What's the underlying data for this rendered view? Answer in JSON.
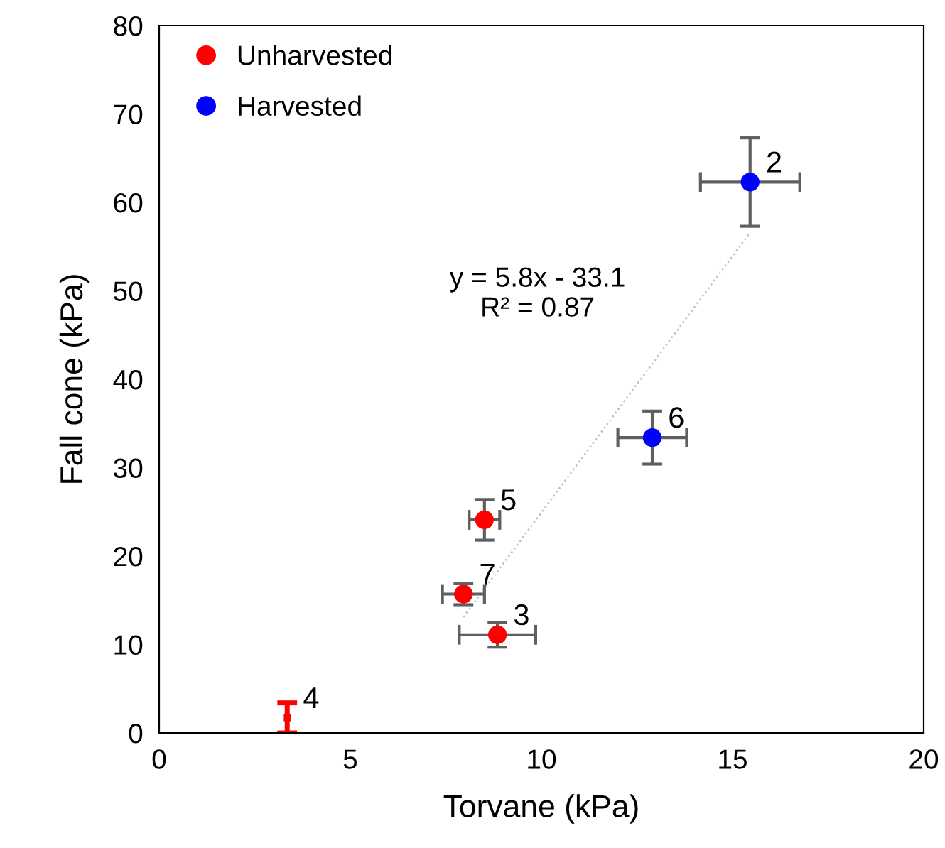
{
  "chart_data": {
    "type": "scatter",
    "xlabel": "Torvane (kPa)",
    "ylabel": "Fall cone (kPa)",
    "xlim": [
      0,
      20
    ],
    "xticks": [
      0,
      5,
      10,
      15,
      20
    ],
    "ylim": [
      0,
      80
    ],
    "yticks": [
      0,
      10,
      20,
      30,
      40,
      50,
      60,
      70,
      80
    ],
    "grid": false,
    "legend": "top left",
    "series": [
      {
        "name": "Unharvested",
        "color": "#ff0000",
        "marker": "circle",
        "x": [
          8.51,
          7.96,
          8.85
        ],
        "values": [
          24.1,
          15.7,
          11.1
        ],
        "errors": [
          2.3,
          1.2,
          1.4
        ],
        "xerrors": [
          0.4,
          0.55,
          1.0
        ]
      },
      {
        "name": "Harvested",
        "color": "#0000ff",
        "marker": "circle",
        "x": [
          15.46,
          12.9
        ],
        "values": [
          62.3,
          33.4
        ],
        "errors": [
          5,
          3
        ],
        "xerrors": [
          1.3,
          0.9
        ]
      },
      {
        "color": "#ff0000",
        "x": [
          3.35
        ],
        "values": [
          1.7
        ],
        "errors": [
          1.7
        ],
        "marker": "square"
      },
      {
        "type": "line",
        "color": "#bfbfbf",
        "line_style": "dotted",
        "marker": "none",
        "x": [
          7.96,
          15.46
        ],
        "values": [
          13.1,
          56.6
        ]
      }
    ],
    "annotations": [
      {
        "text": "2",
        "x": 15.46,
        "y": 62.3
      },
      {
        "text": "6",
        "x": 12.9,
        "y": 33.4
      },
      {
        "text": "5",
        "x": 8.51,
        "y": 24.1
      },
      {
        "text": "7",
        "x": 7.96,
        "y": 15.7
      },
      {
        "text": "3",
        "x": 8.85,
        "y": 11.1
      },
      {
        "text": "4",
        "x": 3.35,
        "y": 1.7
      },
      "y = 5.8x - 33.1\nR² = 0.87"
    ]
  }
}
